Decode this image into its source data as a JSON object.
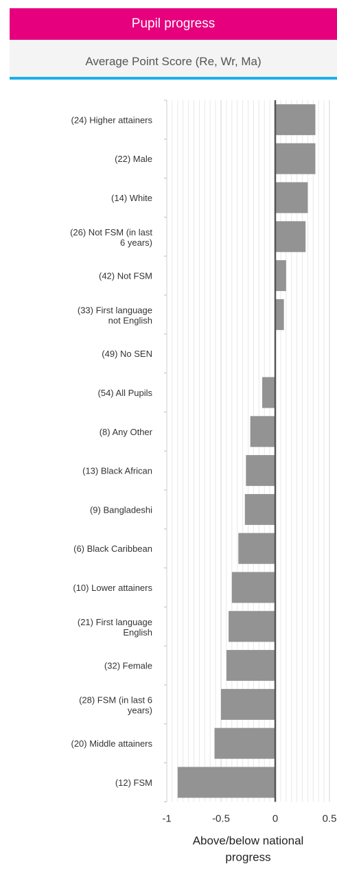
{
  "header": {
    "title": "Pupil progress"
  },
  "subtitle": "Average Point Score (Re, Wr, Ma)",
  "colors": {
    "header": "#e6007e",
    "rule": "#1ab0ea",
    "bar": "#939393",
    "zero_line": "#555555"
  },
  "chart_data": {
    "type": "bar",
    "orientation": "horizontal",
    "categories": [
      "(24) Higher attainers",
      "(22) Male",
      "(14) White",
      "(26) Not FSM (in last 6 years)",
      "(42) Not FSM",
      "(33) First language not English",
      "(49) No SEN",
      "(54) All Pupils",
      "(8) Any Other",
      "(13) Black African",
      "(9) Bangladeshi",
      "(6) Black Caribbean",
      "(10) Lower attainers",
      "(21) First language English",
      "(32) Female",
      "(28) FSM (in last 6 years)",
      "(20) Middle attainers",
      "(12) FSM"
    ],
    "values": [
      0.37,
      0.37,
      0.3,
      0.28,
      0.1,
      0.08,
      0.0,
      -0.12,
      -0.23,
      -0.27,
      -0.28,
      -0.34,
      -0.4,
      -0.43,
      -0.45,
      -0.5,
      -0.56,
      -0.9
    ],
    "xlabel": "Above/below national progress",
    "xlim": [
      -1,
      0.5
    ],
    "xticks": [
      "-1",
      "-0.5",
      "0",
      "0.5"
    ],
    "grid": true
  }
}
